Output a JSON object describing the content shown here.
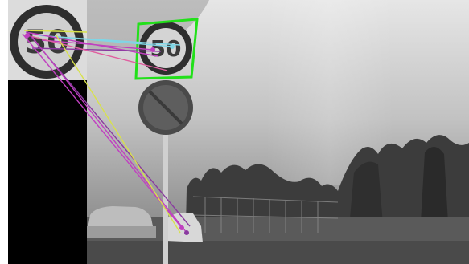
{
  "template_sign": {
    "digits": "50"
  },
  "scene_sign": {
    "digits": "50"
  },
  "colors": {
    "detection_box": "#22e01a",
    "match_cyan": "#7fd6e6",
    "match_magenta": "#c040c0",
    "match_purple": "#8a3aa0",
    "match_lime": "#d8e24a",
    "match_pink": "#e060a0",
    "sign_ring": "#2e2e2e",
    "sign_face": "#d4d4d4",
    "digits": "#3a3a3a"
  }
}
